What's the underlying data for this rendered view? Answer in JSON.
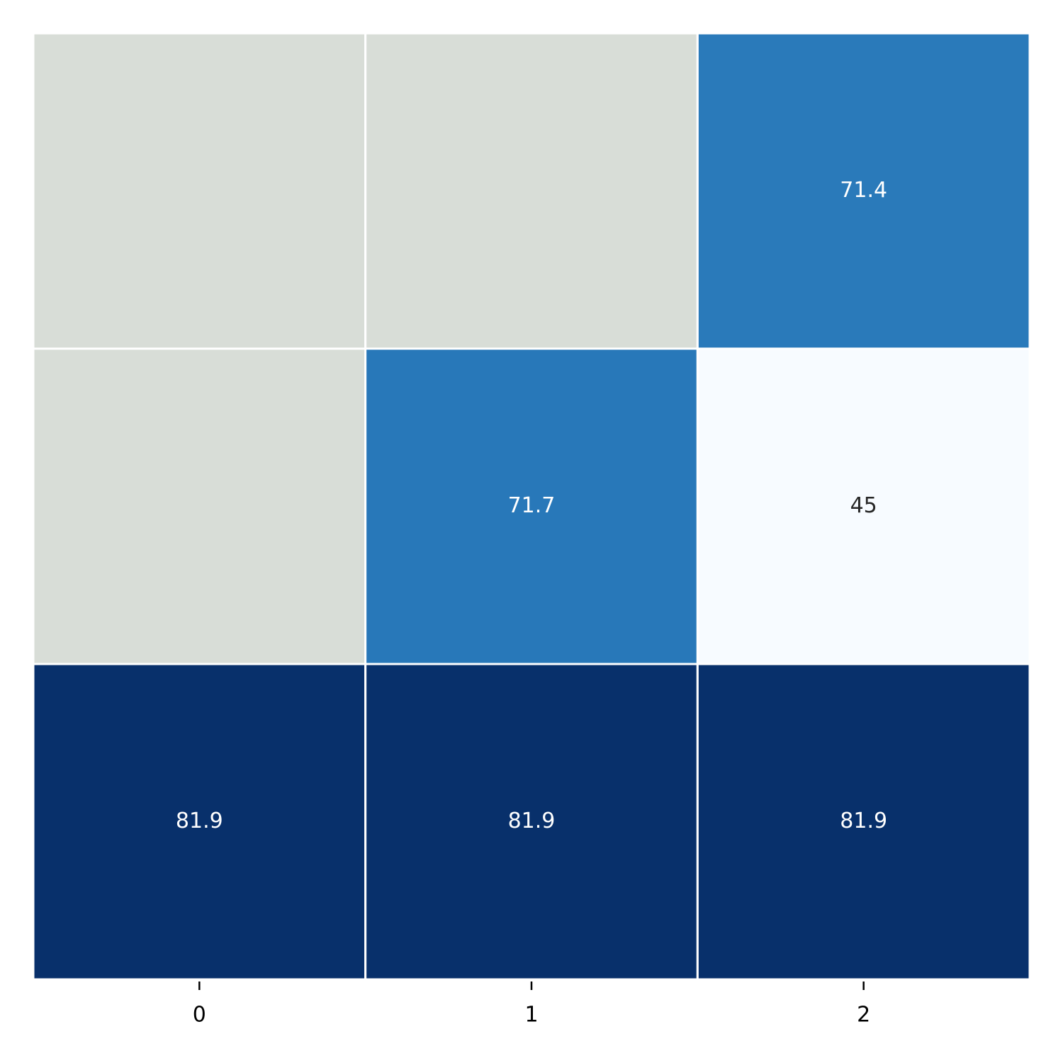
{
  "chart_data": {
    "type": "heatmap",
    "categories": [
      "0",
      "1",
      "2"
    ],
    "values": [
      [
        null,
        null,
        71.4
      ],
      [
        null,
        71.7,
        45
      ],
      [
        81.9,
        81.9,
        81.9
      ]
    ],
    "colorscale": [
      "#f7fbff",
      "#deebf7",
      "#c6dbef",
      "#9ecae1",
      "#6baed6",
      "#4292c6",
      "#2171b5",
      "#08519c",
      "#08306b"
    ],
    "mask_color": "#d8ddd7"
  }
}
